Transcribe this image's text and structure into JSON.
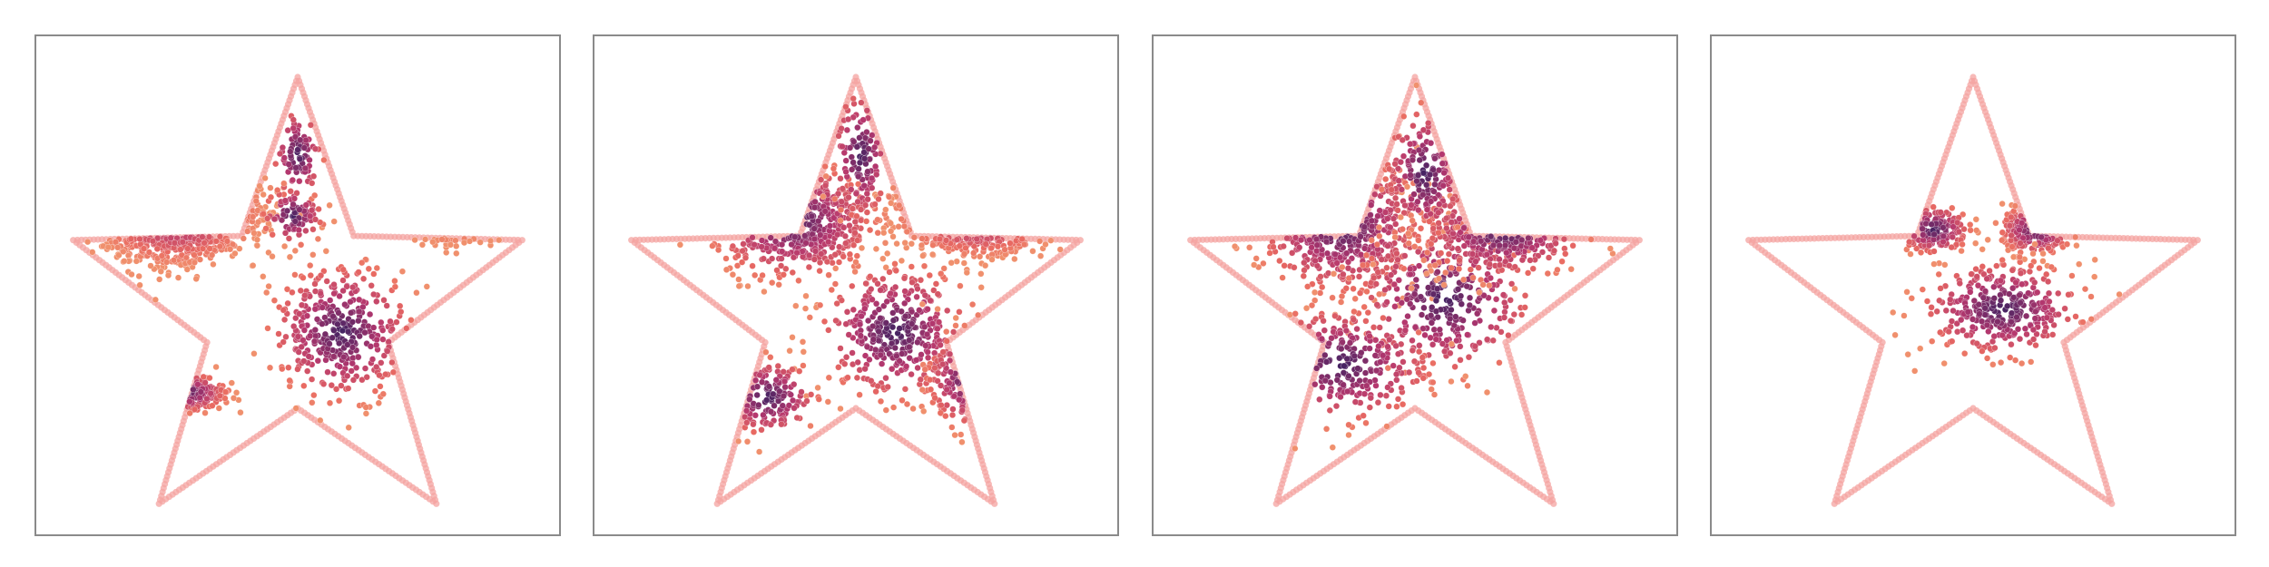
{
  "chart_data": [
    {
      "type": "scatter",
      "title": "",
      "xlabel": "",
      "ylabel": "",
      "grid": false,
      "legend": "none",
      "boundary": {
        "shape": "star",
        "color": "#f4a3a0"
      },
      "clusters": [
        {
          "cx": 0.25,
          "cy": 0.67,
          "sx": 0.07,
          "sy": 0.05,
          "n": 360
        },
        {
          "cx": 0.59,
          "cy": 0.4,
          "sx": 0.07,
          "sy": 0.07,
          "n": 360
        },
        {
          "cx": 0.82,
          "cy": 0.67,
          "sx": 0.05,
          "sy": 0.03,
          "n": 150
        },
        {
          "cx": 0.5,
          "cy": 0.78,
          "sx": 0.025,
          "sy": 0.05,
          "n": 80
        },
        {
          "cx": 0.27,
          "cy": 0.27,
          "sx": 0.04,
          "sy": 0.02,
          "n": 120
        },
        {
          "cx": 0.49,
          "cy": 0.65,
          "sx": 0.03,
          "sy": 0.03,
          "n": 90
        }
      ]
    },
    {
      "type": "scatter",
      "title": "",
      "xlabel": "",
      "ylabel": "",
      "grid": false,
      "legend": "none",
      "boundary": {
        "shape": "star",
        "color": "#f4a3a0"
      },
      "clusters": [
        {
          "cx": 0.37,
          "cy": 0.64,
          "sx": 0.08,
          "sy": 0.06,
          "n": 360
        },
        {
          "cx": 0.58,
          "cy": 0.4,
          "sx": 0.075,
          "sy": 0.07,
          "n": 360
        },
        {
          "cx": 0.75,
          "cy": 0.66,
          "sx": 0.07,
          "sy": 0.04,
          "n": 180
        },
        {
          "cx": 0.32,
          "cy": 0.26,
          "sx": 0.05,
          "sy": 0.04,
          "n": 140
        },
        {
          "cx": 0.51,
          "cy": 0.78,
          "sx": 0.03,
          "sy": 0.07,
          "n": 120
        },
        {
          "cx": 0.73,
          "cy": 0.3,
          "sx": 0.04,
          "sy": 0.05,
          "n": 90
        }
      ]
    },
    {
      "type": "scatter",
      "title": "",
      "xlabel": "",
      "ylabel": "",
      "grid": false,
      "legend": "none",
      "boundary": {
        "shape": "star",
        "color": "#f4a3a0"
      },
      "clusters": [
        {
          "cx": 0.35,
          "cy": 0.63,
          "sx": 0.08,
          "sy": 0.07,
          "n": 330
        },
        {
          "cx": 0.56,
          "cy": 0.47,
          "sx": 0.09,
          "sy": 0.08,
          "n": 330
        },
        {
          "cx": 0.68,
          "cy": 0.62,
          "sx": 0.08,
          "sy": 0.05,
          "n": 220
        },
        {
          "cx": 0.35,
          "cy": 0.33,
          "sx": 0.09,
          "sy": 0.06,
          "n": 220
        },
        {
          "cx": 0.52,
          "cy": 0.74,
          "sx": 0.04,
          "sy": 0.07,
          "n": 160
        }
      ]
    },
    {
      "type": "scatter",
      "title": "",
      "xlabel": "",
      "ylabel": "",
      "grid": false,
      "legend": "none",
      "boundary": {
        "shape": "star",
        "color": "#f4a3a0"
      },
      "clusters": [
        {
          "cx": 0.42,
          "cy": 0.62,
          "sx": 0.035,
          "sy": 0.025,
          "n": 140
        },
        {
          "cx": 0.63,
          "cy": 0.62,
          "sx": 0.035,
          "sy": 0.025,
          "n": 150
        },
        {
          "cx": 0.56,
          "cy": 0.45,
          "sx": 0.08,
          "sy": 0.05,
          "n": 340
        }
      ]
    }
  ]
}
